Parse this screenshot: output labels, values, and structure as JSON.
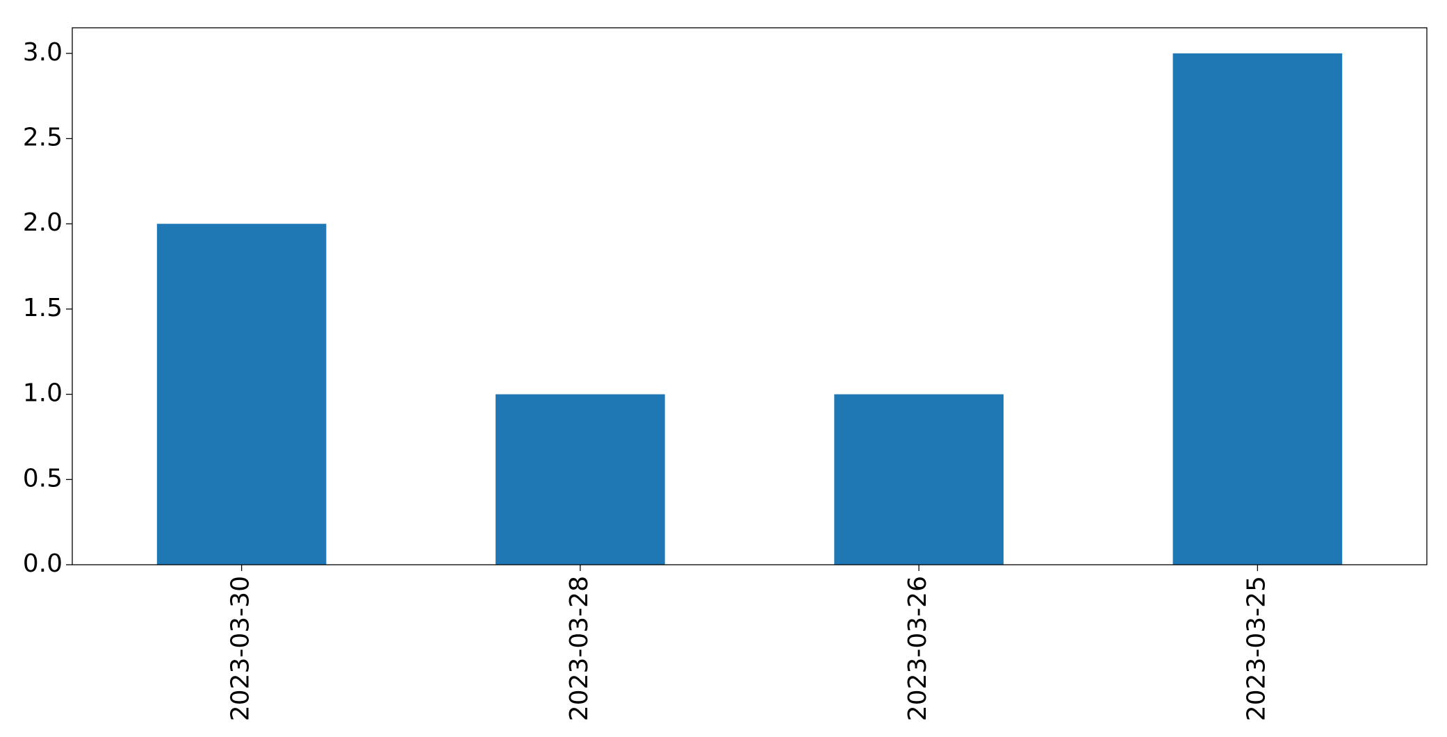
{
  "chart_data": {
    "type": "bar",
    "categories": [
      "2023-03-30",
      "2023-03-28",
      "2023-03-26",
      "2023-03-25"
    ],
    "values": [
      2,
      1,
      1,
      3
    ],
    "color": "#1f77b4",
    "ylim": [
      0,
      3.15
    ],
    "yticks": [
      {
        "value": 0,
        "label": "0.0"
      },
      {
        "value": 0.5,
        "label": "0.5"
      },
      {
        "value": 1,
        "label": "1.0"
      },
      {
        "value": 1.5,
        "label": "1.5"
      },
      {
        "value": 2,
        "label": "2.0"
      },
      {
        "value": 2.5,
        "label": "2.5"
      },
      {
        "value": 3,
        "label": "3.0"
      }
    ],
    "grid": false
  }
}
